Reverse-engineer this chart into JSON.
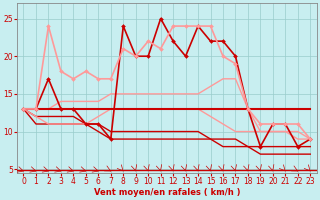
{
  "xlabel": "Vent moyen/en rafales ( km/h )",
  "xlim": [
    -0.5,
    23.5
  ],
  "ylim": [
    4.5,
    27
  ],
  "yticks": [
    5,
    10,
    15,
    20,
    25
  ],
  "xticks": [
    0,
    1,
    2,
    3,
    4,
    5,
    6,
    7,
    8,
    9,
    10,
    11,
    12,
    13,
    14,
    15,
    16,
    17,
    18,
    19,
    20,
    21,
    22,
    23
  ],
  "bg_color": "#c8eef0",
  "grid_color": "#99cccc",
  "series": [
    {
      "x": [
        0,
        1,
        2,
        3,
        4,
        5,
        6,
        7,
        8,
        9,
        10,
        11,
        12,
        13,
        14,
        15,
        16,
        17,
        18,
        19,
        20,
        21,
        22,
        23
      ],
      "y": [
        13,
        13,
        13,
        13,
        13,
        13,
        13,
        13,
        13,
        13,
        13,
        13,
        13,
        13,
        13,
        13,
        13,
        13,
        13,
        13,
        13,
        13,
        13,
        13
      ],
      "color": "#cc0000",
      "lw": 1.5,
      "marker": null,
      "ms": 0,
      "zorder": 3
    },
    {
      "x": [
        0,
        1,
        2,
        3,
        4,
        5,
        6,
        7,
        8,
        9,
        10,
        11,
        12,
        13,
        14,
        15,
        16,
        17,
        18,
        19,
        20,
        21,
        22,
        23
      ],
      "y": [
        13,
        13,
        17,
        13,
        13,
        11,
        11,
        9,
        24,
        20,
        20,
        25,
        22,
        20,
        24,
        22,
        22,
        20,
        13,
        8,
        11,
        11,
        8,
        9
      ],
      "color": "#cc0000",
      "lw": 1.2,
      "marker": "D",
      "ms": 2.0,
      "zorder": 4
    },
    {
      "x": [
        0,
        1,
        2,
        3,
        4,
        5,
        6,
        7,
        8,
        9,
        10,
        11,
        12,
        13,
        14,
        15,
        16,
        17,
        18,
        19,
        20,
        21,
        22,
        23
      ],
      "y": [
        13,
        12,
        12,
        12,
        12,
        11,
        11,
        10,
        10,
        10,
        10,
        10,
        10,
        10,
        10,
        9,
        9,
        9,
        8,
        8,
        8,
        8,
        8,
        8
      ],
      "color": "#cc0000",
      "lw": 1.0,
      "marker": null,
      "ms": 0,
      "zorder": 2
    },
    {
      "x": [
        0,
        1,
        2,
        3,
        4,
        5,
        6,
        7,
        8,
        9,
        10,
        11,
        12,
        13,
        14,
        15,
        16,
        17,
        18,
        19,
        20,
        21,
        22,
        23
      ],
      "y": [
        13,
        11,
        11,
        11,
        11,
        11,
        10,
        9,
        9,
        9,
        9,
        9,
        9,
        9,
        9,
        9,
        8,
        8,
        8,
        7,
        7,
        7,
        7,
        7
      ],
      "color": "#cc0000",
      "lw": 1.0,
      "marker": null,
      "ms": 0,
      "zorder": 2
    },
    {
      "x": [
        0,
        1,
        2,
        3,
        4,
        5,
        6,
        7,
        8,
        9,
        10,
        11,
        12,
        13,
        14,
        15,
        16,
        17,
        18,
        19,
        20,
        21,
        22,
        23
      ],
      "y": [
        13,
        13,
        24,
        18,
        17,
        18,
        17,
        17,
        21,
        20,
        22,
        21,
        24,
        24,
        24,
        24,
        20,
        19,
        13,
        11,
        11,
        11,
        11,
        9
      ],
      "color": "#ff9999",
      "lw": 1.2,
      "marker": "D",
      "ms": 2.0,
      "zorder": 4
    },
    {
      "x": [
        0,
        1,
        2,
        3,
        4,
        5,
        6,
        7,
        8,
        9,
        10,
        11,
        12,
        13,
        14,
        15,
        16,
        17,
        18,
        19,
        20,
        21,
        22,
        23
      ],
      "y": [
        13,
        13,
        13,
        14,
        14,
        14,
        14,
        15,
        15,
        15,
        15,
        15,
        15,
        15,
        15,
        16,
        17,
        17,
        13,
        10,
        10,
        10,
        9,
        9
      ],
      "color": "#ff9999",
      "lw": 1.0,
      "marker": null,
      "ms": 0,
      "zorder": 2
    },
    {
      "x": [
        0,
        1,
        2,
        3,
        4,
        5,
        6,
        7,
        8,
        9,
        10,
        11,
        12,
        13,
        14,
        15,
        16,
        17,
        18,
        19,
        20,
        21,
        22,
        23
      ],
      "y": [
        13,
        12,
        11,
        11,
        11,
        11,
        12,
        13,
        13,
        13,
        13,
        13,
        13,
        13,
        13,
        12,
        11,
        10,
        10,
        10,
        10,
        10,
        10,
        9
      ],
      "color": "#ff9999",
      "lw": 1.0,
      "marker": null,
      "ms": 0,
      "zorder": 2
    }
  ],
  "arrow_color": "#cc0000",
  "arrow_angles": [
    45,
    45,
    45,
    45,
    45,
    45,
    45,
    30,
    15,
    5,
    5,
    5,
    5,
    5,
    5,
    5,
    5,
    5,
    5,
    5,
    5,
    15,
    30,
    15
  ]
}
